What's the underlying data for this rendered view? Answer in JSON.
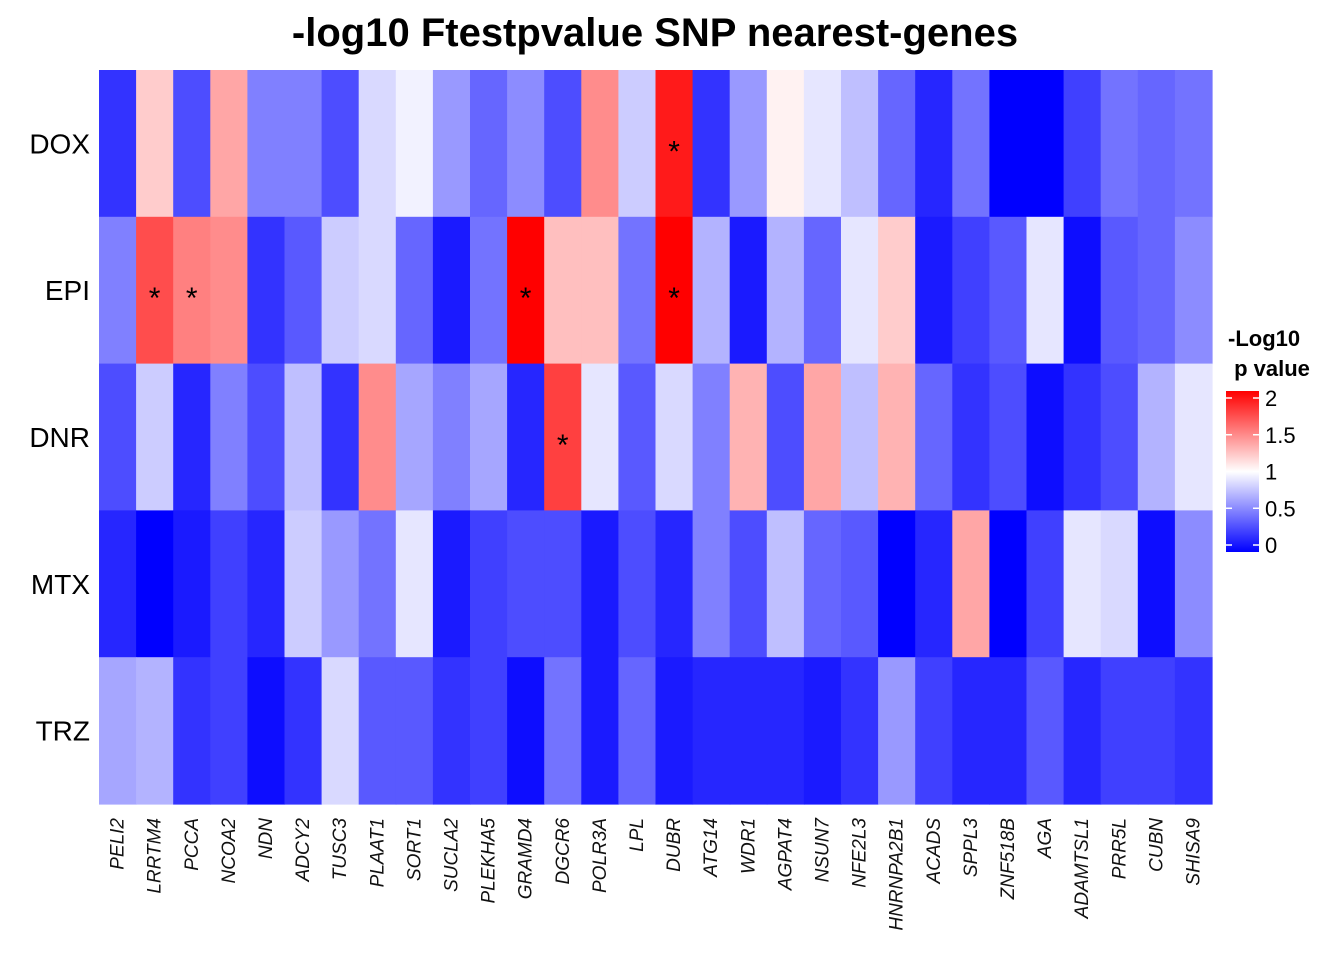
{
  "chart_data": {
    "type": "heatmap",
    "title": "-log10 Ftestpvalue SNP nearest-genes",
    "rows": [
      "DOX",
      "EPI",
      "DNR",
      "MTX",
      "TRZ"
    ],
    "columns": [
      "PELI2",
      "LRRTM4",
      "PCCA",
      "NCOA2",
      "NDN",
      "ADCY2",
      "TUSC3",
      "PLAAT1",
      "SORT1",
      "SUCLA2",
      "PLEKHA5",
      "GRAMD4",
      "DGCR6",
      "POLR3A",
      "LPL",
      "DUBR",
      "ATG14",
      "WDR1",
      "AGPAT4",
      "NSUN7",
      "NFE2L3",
      "HNRNPA2B1",
      "ACADS",
      "SPPL3",
      "ZNF518B",
      "AGA",
      "ADAMTSL1",
      "PRR5L",
      "CUBN",
      "SHISA9"
    ],
    "values": [
      [
        0.2,
        1.2,
        0.3,
        1.35,
        0.5,
        0.5,
        0.3,
        0.85,
        0.95,
        0.6,
        0.4,
        0.55,
        0.3,
        1.45,
        0.8,
        1.9,
        0.2,
        0.6,
        1.05,
        0.9,
        0.75,
        0.4,
        0.15,
        0.45,
        0.0,
        0.0,
        0.25,
        0.45,
        0.4,
        0.45
      ],
      [
        0.5,
        1.7,
        1.5,
        1.45,
        0.2,
        0.35,
        0.8,
        0.85,
        0.4,
        0.1,
        0.45,
        2.0,
        1.25,
        1.25,
        0.45,
        2.0,
        0.7,
        0.1,
        0.7,
        0.4,
        0.9,
        1.2,
        0.1,
        0.25,
        0.35,
        0.9,
        0.05,
        0.35,
        0.4,
        0.55
      ],
      [
        0.3,
        0.8,
        0.15,
        0.5,
        0.3,
        0.75,
        0.2,
        1.45,
        0.65,
        0.5,
        0.65,
        0.15,
        1.75,
        0.9,
        0.35,
        0.85,
        0.5,
        1.3,
        0.3,
        1.35,
        0.75,
        1.3,
        0.4,
        0.2,
        0.3,
        0.05,
        0.2,
        0.3,
        0.7,
        0.9
      ],
      [
        0.15,
        0.0,
        0.1,
        0.25,
        0.15,
        0.8,
        0.6,
        0.45,
        0.9,
        0.1,
        0.25,
        0.3,
        0.3,
        0.1,
        0.3,
        0.15,
        0.5,
        0.3,
        0.75,
        0.4,
        0.35,
        0.0,
        0.15,
        1.35,
        0.0,
        0.25,
        0.9,
        0.85,
        0.05,
        0.55
      ],
      [
        0.65,
        0.7,
        0.2,
        0.25,
        0.05,
        0.2,
        0.85,
        0.35,
        0.35,
        0.2,
        0.25,
        0.05,
        0.45,
        0.1,
        0.4,
        0.1,
        0.15,
        0.15,
        0.15,
        0.1,
        0.2,
        0.6,
        0.25,
        0.15,
        0.15,
        0.35,
        0.15,
        0.25,
        0.25,
        0.2
      ]
    ],
    "significance_marks": [
      {
        "row": "DOX",
        "column": "DUBR",
        "label": "*"
      },
      {
        "row": "EPI",
        "column": "LRRTM4",
        "label": "*"
      },
      {
        "row": "EPI",
        "column": "PCCA",
        "label": "*"
      },
      {
        "row": "EPI",
        "column": "GRAMD4",
        "label": "*"
      },
      {
        "row": "EPI",
        "column": "DUBR",
        "label": "*"
      },
      {
        "row": "DNR",
        "column": "DGCR6",
        "label": "*"
      }
    ],
    "legend": {
      "title_line1": "-Log10",
      "title_line2": " p value",
      "ticks": [
        "0",
        "0.5",
        "1",
        "1.5",
        "2"
      ],
      "tick_values": [
        0,
        0.5,
        1,
        1.5,
        2
      ],
      "range": [
        0,
        2
      ],
      "placement": "right"
    },
    "colors": {
      "low": "#0000FF",
      "mid": "#FFFFFF",
      "high": "#FF0000",
      "mid_value": 1
    }
  }
}
